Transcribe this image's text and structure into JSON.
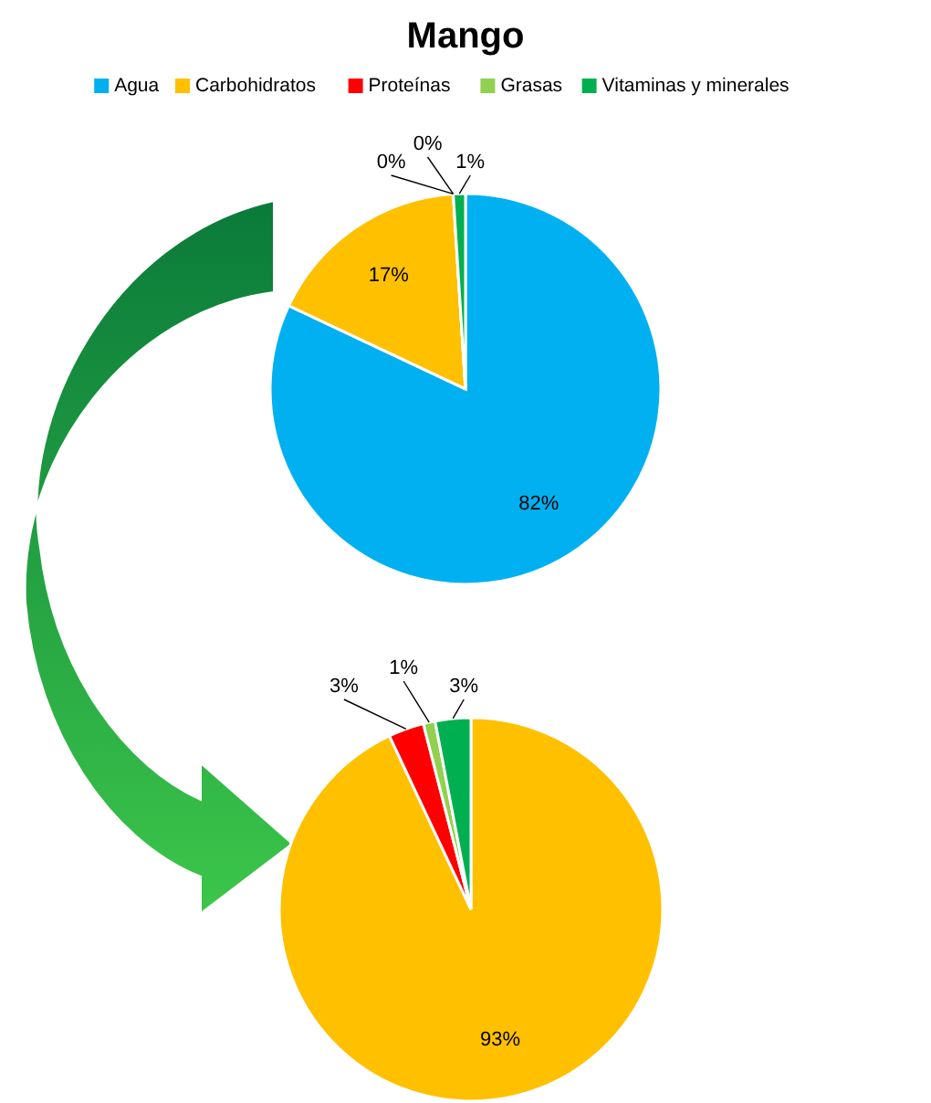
{
  "chart_data": [
    {
      "type": "pie",
      "title": "Mango",
      "categories": [
        "Agua",
        "Carbohidratos",
        "Proteínas",
        "Grasas",
        "Vitaminas y minerales"
      ],
      "values": [
        82,
        17,
        0,
        0,
        1
      ],
      "value_labels": [
        "82%",
        "17%",
        "0%",
        "0%",
        "1%"
      ],
      "colors": [
        "#00b0f0",
        "#ffc000",
        "#ff0000",
        "#92d050",
        "#00b050"
      ],
      "legend": "top"
    },
    {
      "type": "pie",
      "categories": [
        null,
        null,
        null,
        null
      ],
      "values": [
        93,
        3,
        1,
        3
      ],
      "value_labels": [
        "93%",
        "3%",
        "1%",
        "3%"
      ],
      "colors": [
        "#ffc000",
        "#ff0000",
        "#92d050",
        "#00b050"
      ]
    }
  ]
}
